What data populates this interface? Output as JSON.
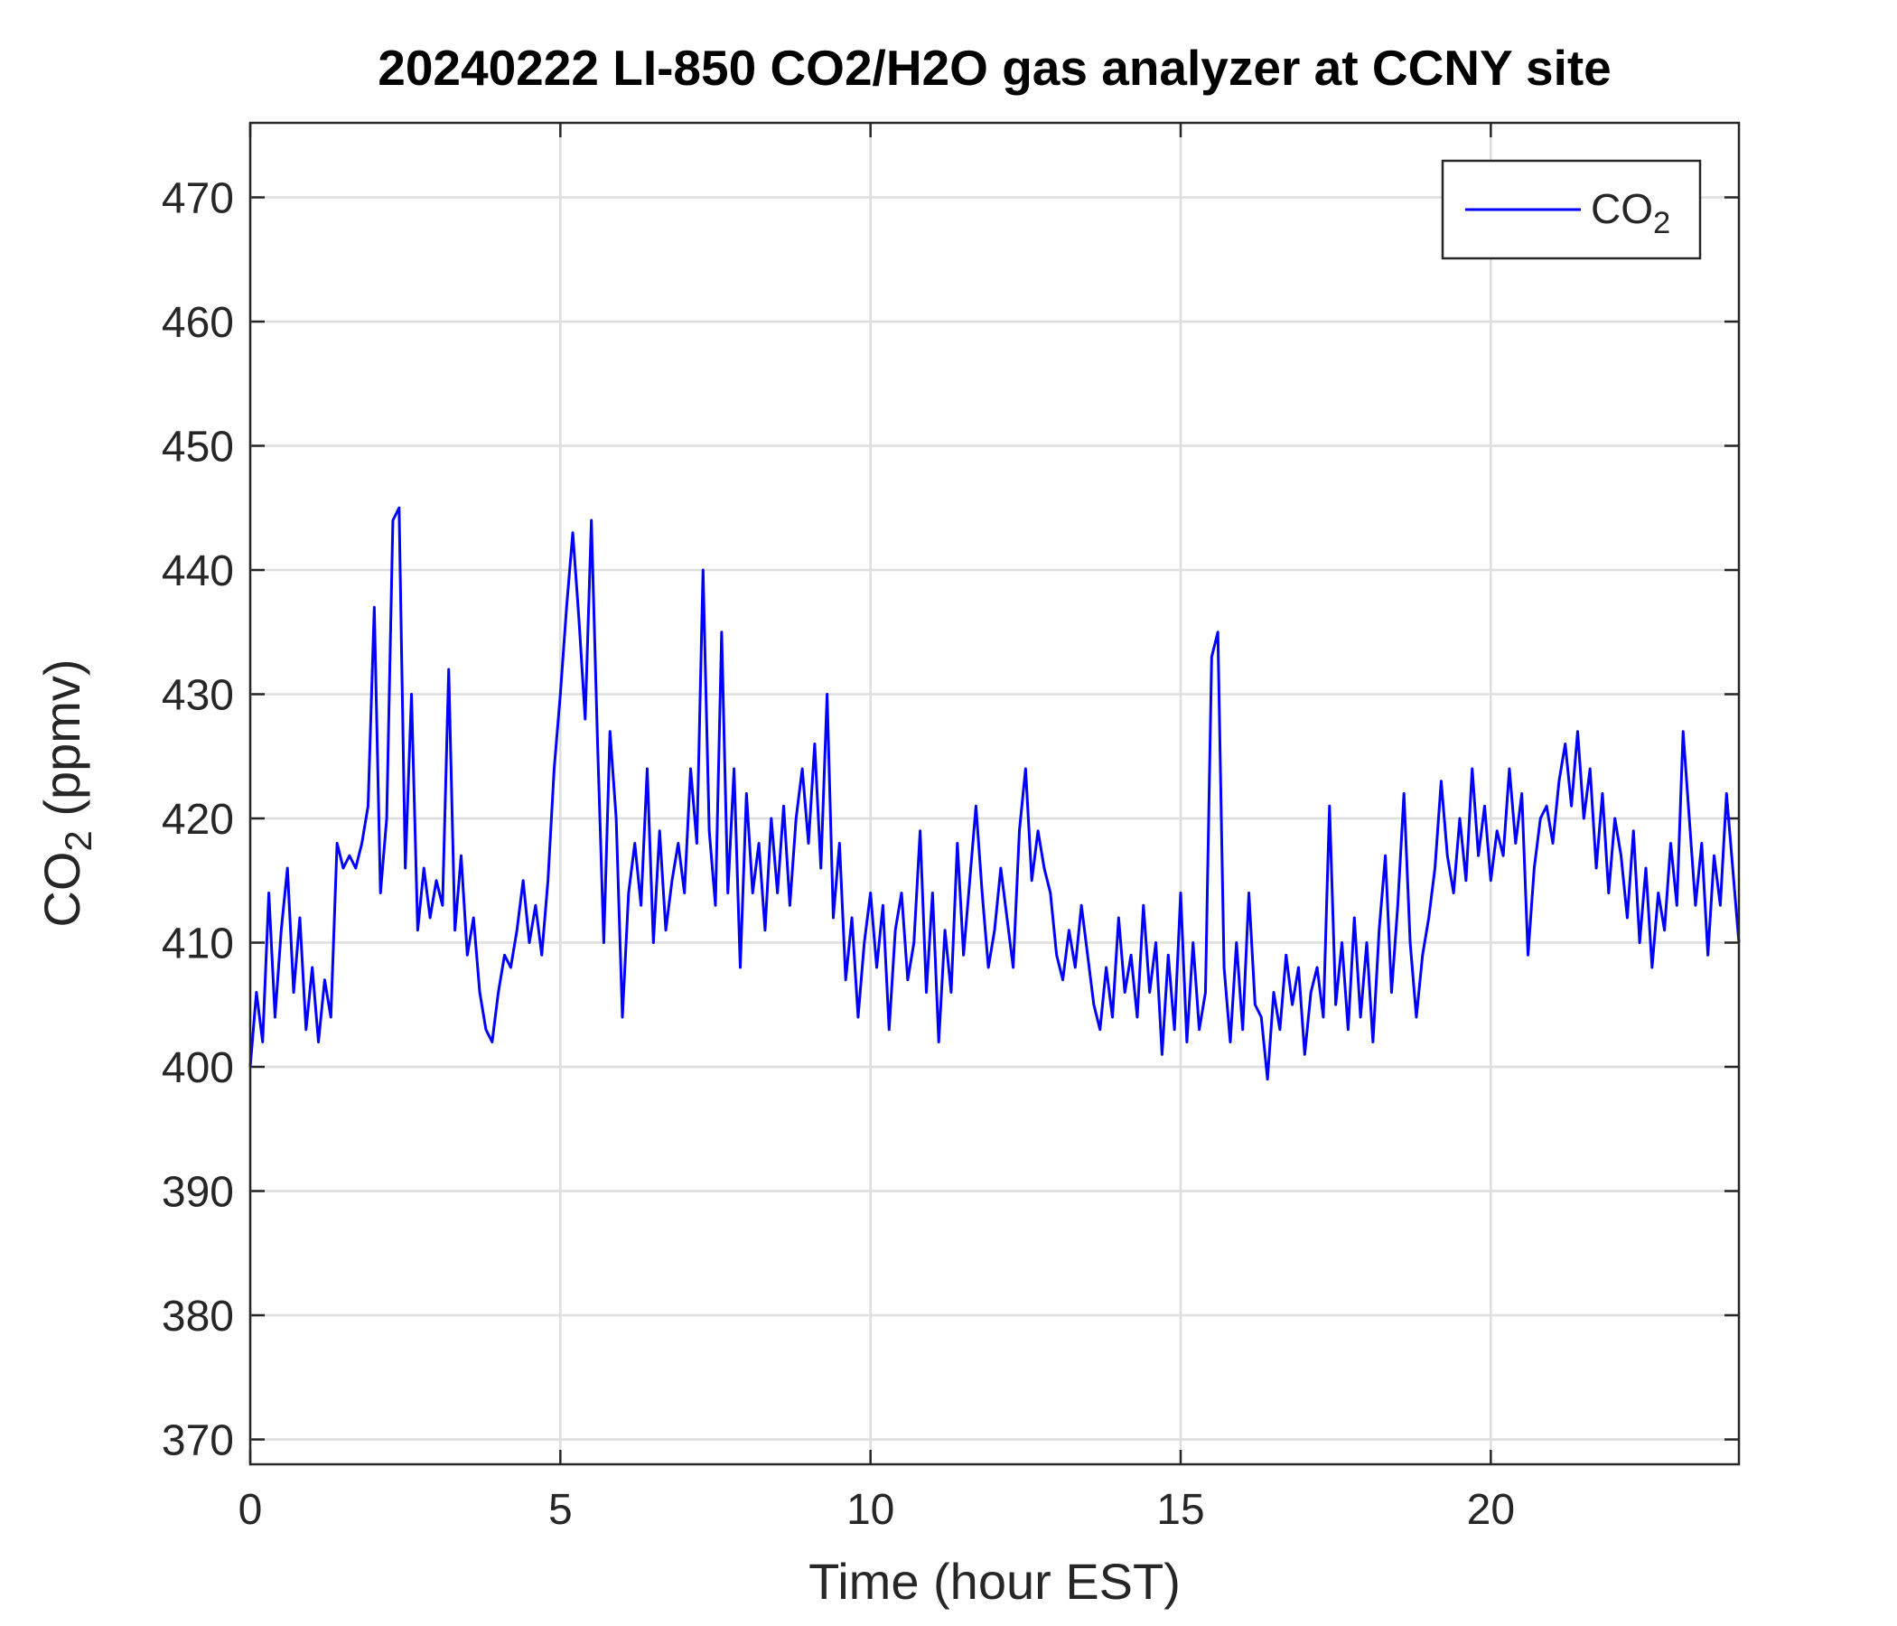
{
  "chart_data": {
    "type": "line",
    "title": "20240222 LI-850 CO2/H2O gas analyzer at CCNY site",
    "x_label": "Time (hour EST)",
    "y_label": "CO2 (ppmv)",
    "xlim": [
      0,
      24
    ],
    "ylim": [
      368,
      476
    ],
    "xticks": [
      0,
      5,
      10,
      15,
      20
    ],
    "yticks": [
      370,
      380,
      390,
      400,
      410,
      420,
      430,
      440,
      450,
      460,
      470
    ],
    "grid": true,
    "legend": "upper right",
    "x": [
      0,
      0.1,
      0.2,
      0.3,
      0.4,
      0.5,
      0.6,
      0.7,
      0.8,
      0.9,
      1,
      1.1,
      1.2,
      1.3,
      1.4,
      1.5,
      1.6,
      1.7,
      1.8,
      1.9,
      2,
      2.1,
      2.2,
      2.3,
      2.4,
      2.5,
      2.6,
      2.7,
      2.8,
      2.9,
      3,
      3.1,
      3.2,
      3.3,
      3.4,
      3.5,
      3.6,
      3.7,
      3.8,
      3.9,
      4,
      4.1,
      4.2,
      4.3,
      4.4,
      4.5,
      4.6,
      4.7,
      4.8,
      4.9,
      5,
      5.1,
      5.2,
      5.3,
      5.4,
      5.5,
      5.6,
      5.7,
      5.8,
      5.9,
      6,
      6.1,
      6.2,
      6.3,
      6.4,
      6.5,
      6.6,
      6.7,
      6.8,
      6.9,
      7,
      7.1,
      7.2,
      7.3,
      7.4,
      7.5,
      7.6,
      7.7,
      7.8,
      7.9,
      8,
      8.1,
      8.2,
      8.3,
      8.4,
      8.5,
      8.6,
      8.7,
      8.8,
      8.9,
      9,
      9.1,
      9.2,
      9.3,
      9.4,
      9.5,
      9.6,
      9.7,
      9.8,
      9.9,
      10,
      10.1,
      10.2,
      10.3,
      10.4,
      10.5,
      10.6,
      10.7,
      10.8,
      10.9,
      11,
      11.1,
      11.2,
      11.3,
      11.4,
      11.5,
      11.6,
      11.7,
      11.8,
      11.9,
      12,
      12.1,
      12.2,
      12.3,
      12.4,
      12.5,
      12.6,
      12.7,
      12.8,
      12.9,
      13,
      13.1,
      13.2,
      13.3,
      13.4,
      13.5,
      13.6,
      13.7,
      13.8,
      13.9,
      14,
      14.1,
      14.2,
      14.3,
      14.4,
      14.5,
      14.6,
      14.7,
      14.8,
      14.9,
      15,
      15.1,
      15.2,
      15.3,
      15.4,
      15.5,
      15.6,
      15.7,
      15.8,
      15.9,
      16,
      16.1,
      16.2,
      16.3,
      16.4,
      16.5,
      16.6,
      16.7,
      16.8,
      16.9,
      17,
      17.1,
      17.2,
      17.3,
      17.4,
      17.5,
      17.6,
      17.7,
      17.8,
      17.9,
      18,
      18.1,
      18.2,
      18.3,
      18.4,
      18.5,
      18.6,
      18.7,
      18.8,
      18.9,
      19,
      19.1,
      19.2,
      19.3,
      19.4,
      19.5,
      19.6,
      19.7,
      19.8,
      19.9,
      20,
      20.1,
      20.2,
      20.3,
      20.4,
      20.5,
      20.6,
      20.7,
      20.8,
      20.9,
      21,
      21.1,
      21.2,
      21.3,
      21.4,
      21.5,
      21.6,
      21.7,
      21.8,
      21.9,
      22,
      22.1,
      22.2,
      22.3,
      22.4,
      22.5,
      22.6,
      22.7,
      22.8,
      22.9,
      23,
      23.1,
      23.2,
      23.3,
      23.4,
      23.5,
      23.6,
      23.7,
      23.8,
      23.9,
      24
    ],
    "series": [
      {
        "name": "CO2",
        "color": "#0000ff",
        "values": [
          400,
          406,
          402,
          414,
          404,
          411,
          416,
          406,
          412,
          403,
          408,
          402,
          407,
          404,
          418,
          416,
          417,
          416,
          418,
          421,
          437,
          414,
          420,
          444,
          445,
          416,
          430,
          411,
          416,
          412,
          415,
          413,
          432,
          411,
          417,
          409,
          412,
          406,
          403,
          402,
          406,
          409,
          408,
          411,
          415,
          410,
          413,
          409,
          415,
          424,
          430,
          437,
          443,
          436,
          428,
          444,
          426,
          410,
          427,
          420,
          404,
          414,
          418,
          413,
          424,
          410,
          419,
          411,
          415,
          418,
          414,
          424,
          418,
          440,
          419,
          413,
          435,
          414,
          424,
          408,
          422,
          414,
          418,
          411,
          420,
          414,
          421,
          413,
          420,
          424,
          418,
          426,
          416,
          430,
          412,
          418,
          407,
          412,
          404,
          410,
          414,
          408,
          413,
          403,
          411,
          414,
          407,
          410,
          419,
          406,
          414,
          402,
          411,
          406,
          418,
          409,
          415,
          421,
          414,
          408,
          411,
          416,
          412,
          408,
          419,
          424,
          415,
          419,
          416,
          414,
          409,
          407,
          411,
          408,
          413,
          409,
          405,
          403,
          408,
          404,
          412,
          406,
          409,
          404,
          413,
          406,
          410,
          401,
          409,
          403,
          414,
          402,
          410,
          403,
          406,
          433,
          435,
          408,
          402,
          410,
          403,
          414,
          405,
          404,
          399,
          406,
          403,
          409,
          405,
          408,
          401,
          406,
          408,
          404,
          421,
          405,
          410,
          403,
          412,
          404,
          410,
          402,
          411,
          417,
          406,
          413,
          422,
          410,
          404,
          409,
          412,
          416,
          423,
          417,
          414,
          420,
          415,
          424,
          417,
          421,
          415,
          419,
          417,
          424,
          418,
          422,
          409,
          416,
          420,
          421,
          418,
          423,
          426,
          421,
          427,
          420,
          424,
          416,
          422,
          414,
          420,
          417,
          412,
          419,
          410,
          416,
          408,
          414,
          411,
          418,
          413,
          427,
          420,
          413,
          418,
          409,
          417,
          413,
          422,
          416,
          410
        ]
      }
    ]
  }
}
